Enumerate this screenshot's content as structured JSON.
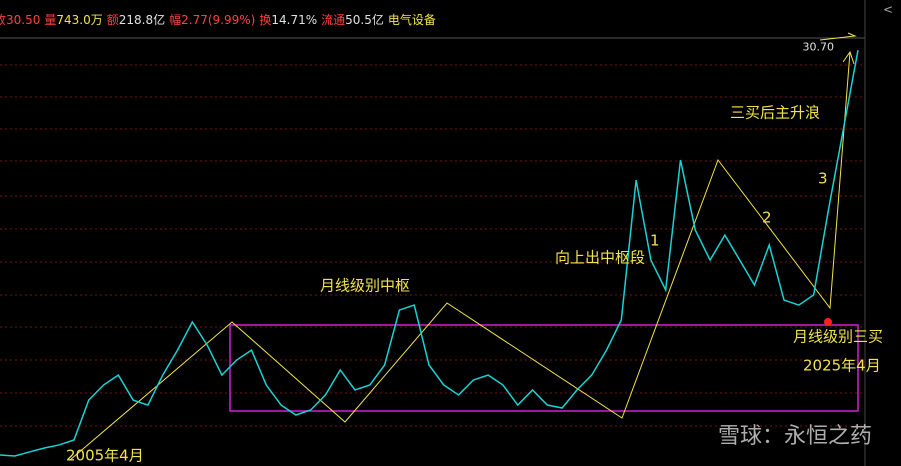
{
  "header": {
    "items": [
      {
        "label": "收",
        "value": "30.50"
      },
      {
        "label": "量",
        "value": "743.0万"
      },
      {
        "label": "额",
        "value": "218.8亿"
      },
      {
        "label": "幅",
        "value": "2.77(9.99%)"
      },
      {
        "label": "换",
        "value": "14.71%"
      },
      {
        "label": "流通",
        "value": "50.5亿"
      },
      {
        "label": "",
        "value": "电气设备"
      }
    ]
  },
  "chart_data": {
    "type": "line",
    "color": "#19d3d3",
    "values": [
      0.37,
      0.3,
      0.6,
      0.89,
      1.12,
      1.49,
      4.46,
      5.58,
      6.32,
      4.46,
      4.09,
      6.32,
      8.18,
      10.27,
      8.56,
      6.32,
      7.44,
      8.18,
      5.58,
      4.09,
      3.35,
      3.72,
      4.84,
      6.7,
      5.21,
      5.58,
      7.07,
      11.16,
      11.53,
      7.07,
      5.58,
      4.84,
      5.95,
      6.32,
      5.58,
      4.09,
      5.21,
      4.09,
      3.87,
      5.21,
      6.32,
      8.18,
      10.42,
      20.83,
      14.88,
      12.65,
      22.32,
      17.11,
      14.88,
      16.74,
      14.88,
      13.02,
      16.0,
      11.9,
      11.53,
      12.28,
      18.6,
      24.55,
      30.5
    ],
    "ylim": [
      0,
      32
    ],
    "high": {
      "value": 30.7,
      "label": "30.70"
    },
    "annotations": [
      "月线级别中枢",
      "向上出中枢段",
      "1",
      "2",
      "3",
      "三买后主升浪",
      "月线级别三买",
      "2025年4月",
      "2005年4月"
    ]
  },
  "watermark": "雪球：永恒之药"
}
